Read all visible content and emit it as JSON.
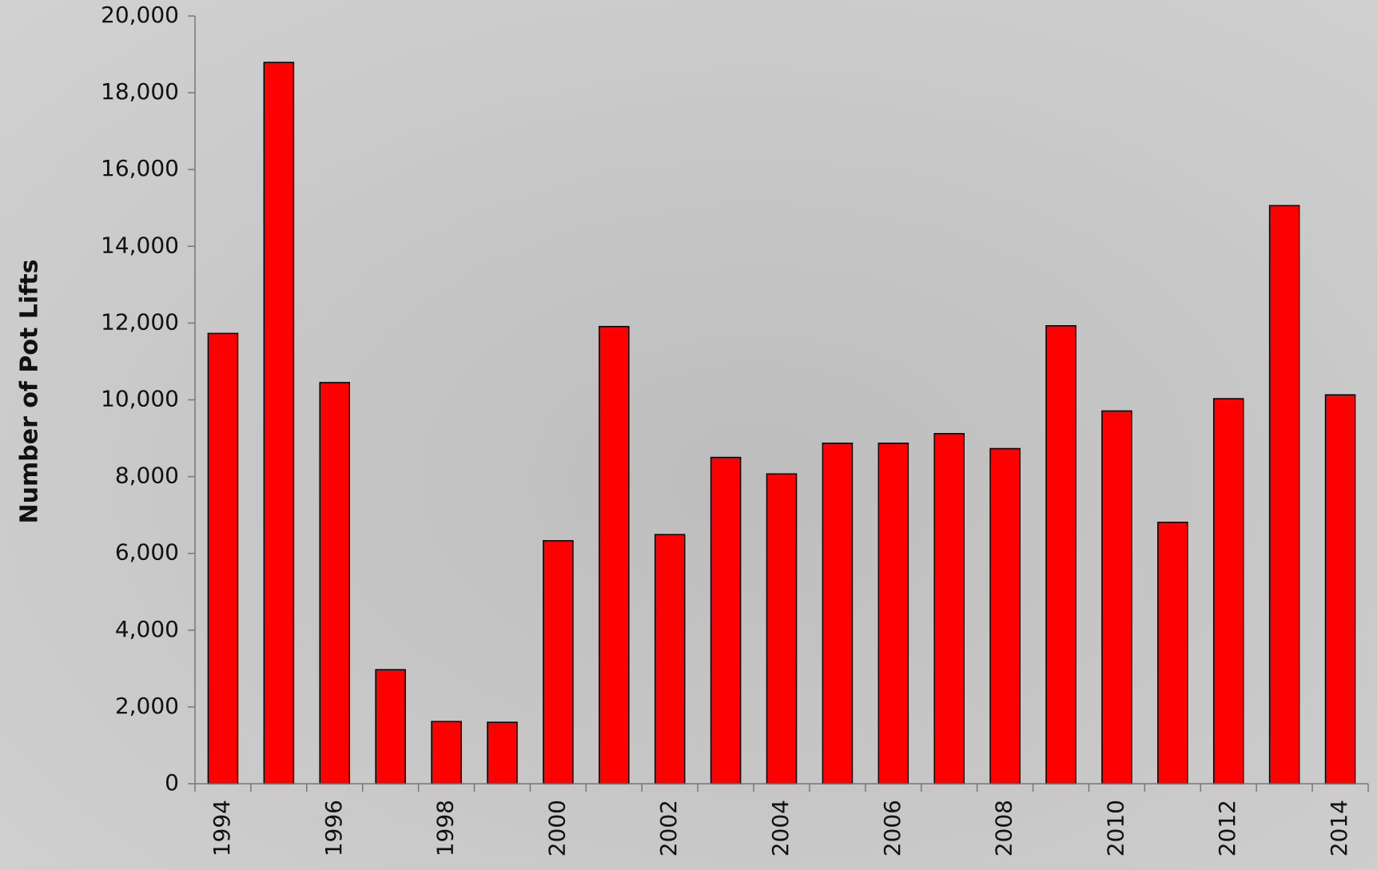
{
  "chart_data": {
    "type": "bar",
    "y_label": "Number of Pot Lifts",
    "categories": [
      "1994",
      null,
      "1996",
      null,
      "1998",
      null,
      "2000",
      null,
      "2002",
      null,
      "2004",
      null,
      "2006",
      null,
      "2008",
      null,
      "2010",
      null,
      "2012",
      null,
      "2014"
    ],
    "values": [
      11730,
      18790,
      10450,
      2970,
      1620,
      1600,
      6330,
      11910,
      6490,
      8500,
      8070,
      8870,
      8870,
      9120,
      8730,
      11930,
      9710,
      6810,
      10030,
      15060,
      10130
    ],
    "color": "#ff0000",
    "ylim": [
      0,
      20000
    ],
    "yticks": [
      0,
      {
        "value": 2000,
        "label": "2,000"
      },
      {
        "value": 4000,
        "label": "4,000"
      },
      {
        "value": 6000,
        "label": "6,000"
      },
      {
        "value": 8000,
        "label": "8,000"
      },
      {
        "value": 10000,
        "label": "10,000"
      },
      {
        "value": 12000,
        "label": "12,000"
      },
      {
        "value": 14000,
        "label": "14,000"
      },
      {
        "value": 16000,
        "label": "16,000"
      },
      {
        "value": 18000,
        "label": "18,000"
      },
      {
        "value": 20000,
        "label": "20,000"
      }
    ]
  }
}
